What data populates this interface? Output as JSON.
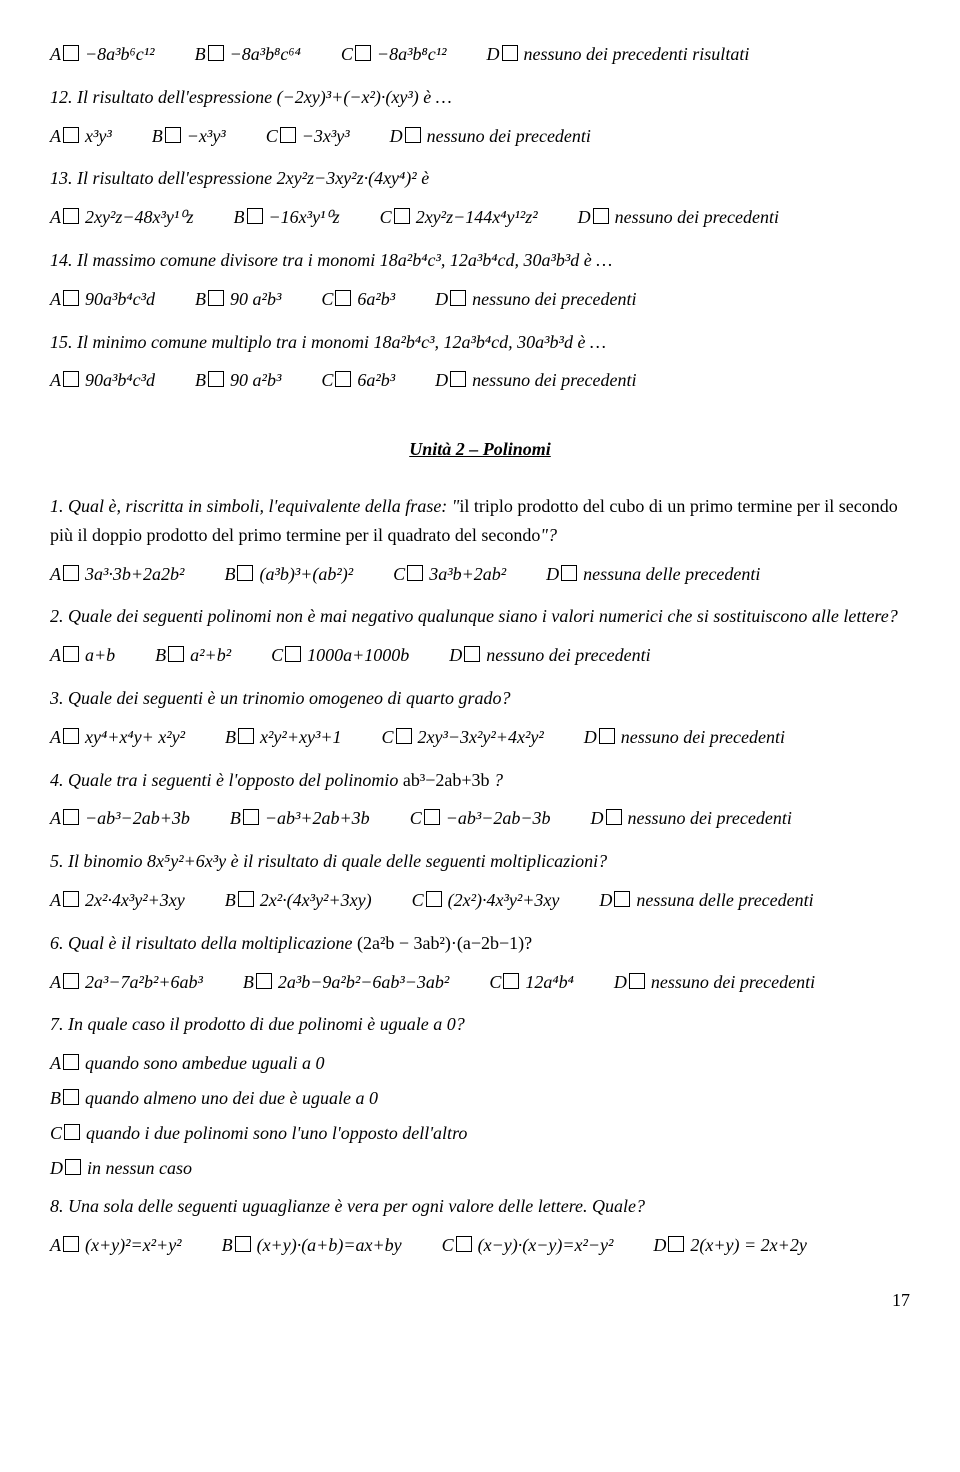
{
  "top_row": {
    "A": "−8a³b⁶c¹²",
    "B": "−8a³b⁸c⁶⁴",
    "C": "−8a³b⁸c¹²",
    "D": "nessuno dei precedenti risultati"
  },
  "q12": {
    "text": "12. Il risultato dell'espressione (−2xy)³+(−x²)·(xy³) è …",
    "A": "x³y³",
    "B": "−x³y³",
    "C": "−3x³y³",
    "D": "nessuno dei precedenti"
  },
  "q13": {
    "text": "13. Il risultato dell'espressione 2xy²z−3xy²z·(4xy⁴)² è",
    "A": "2xy²z−48x³y¹⁰z",
    "B": "−16x³y¹⁰z",
    "C": "2xy²z−144x⁴y¹²z²",
    "D": "nessuno dei precedenti"
  },
  "q14": {
    "text": "14. Il massimo comune divisore tra i monomi 18a²b⁴c³, 12a³b⁴cd, 30a³b³d è …",
    "A": "90a³b⁴c³d",
    "B": "90 a²b³",
    "C": "6a²b³",
    "D": "nessuno dei precedenti"
  },
  "q15": {
    "text": "15. Il minimo comune multiplo tra i monomi 18a²b⁴c³, 12a³b⁴cd, 30a³b³d è …",
    "A": "90a³b⁴c³d",
    "B": "90 a²b³",
    "C": "6a²b³",
    "D": "nessuno dei precedenti"
  },
  "heading": "Unità 2 – Polinomi",
  "p1": {
    "text_a": "1.  Qual è, riscritta in simboli, l'equivalente della frase: \"",
    "text_b": "il triplo prodotto del cubo di un primo termine per il secondo più il doppio prodotto del primo termine per il quadrato del secondo",
    "text_c": "\"?",
    "A": "3a³·3b+2a2b²",
    "B": "(a³b)³+(ab²)²",
    "C": "3a³b+2ab²",
    "D": "nessuna delle precedenti"
  },
  "p2": {
    "text": "2.  Quale dei seguenti polinomi non è mai negativo qualunque siano i valori numerici che si sostituiscono alle lettere?",
    "A": "a+b",
    "B": "a²+b²",
    "C": "1000a+1000b",
    "D": "nessuno dei precedenti"
  },
  "p3": {
    "text": "3.  Quale dei seguenti è un trinomio omogeneo di quarto grado?",
    "A": "xy⁴+x⁴y+ x²y²",
    "B": "x²y²+xy³+1",
    "C": "2xy³−3x²y²+4x²y²",
    "D": "nessuno dei precedenti"
  },
  "p4": {
    "text_a": "4.  Quale tra i seguenti è l'opposto del polinomio ",
    "text_b": "ab³−2ab+3b",
    "text_c": " ?",
    "A": "−ab³−2ab+3b",
    "B": "−ab³+2ab+3b",
    "C": "−ab³−2ab−3b",
    "D": "nessuno dei precedenti"
  },
  "p5": {
    "text": "5.  Il binomio 8x⁵y²+6x³y è il risultato di quale delle seguenti moltiplicazioni?",
    "A": "2x²·4x³y²+3xy",
    "B": "2x²·(4x³y²+3xy)",
    "C": "(2x²)·4x³y²+3xy",
    "D": "nessuna delle precedenti"
  },
  "p6": {
    "text_a": "6.  Qual è il risultato della moltiplicazione ",
    "text_b": "(2a²b − 3ab²)·(a−2b−1)?",
    "A": "2a³−7a²b²+6ab³",
    "B": "2a³b−9a²b²−6ab³−3ab²",
    "C": "12a⁴b⁴",
    "D": "nessuno dei precedenti"
  },
  "p7": {
    "text": "7.  In quale caso il prodotto di due polinomi è uguale a 0?",
    "A": "quando sono ambedue uguali a 0",
    "B": "quando almeno uno dei due è uguale a 0",
    "C": "quando i due polinomi sono l'uno l'opposto dell'altro",
    "D": "in nessun caso"
  },
  "p8": {
    "text": "8.  Una sola delle seguenti uguaglianze è vera per ogni valore delle lettere. Quale?",
    "A": "(x+y)²=x²+y²",
    "B": "(x+y)·(a+b)=ax+by",
    "C": "(x−y)·(x−y)=x²−y²",
    "D": "2(x+y) = 2x+2y"
  },
  "pagenum": "17"
}
